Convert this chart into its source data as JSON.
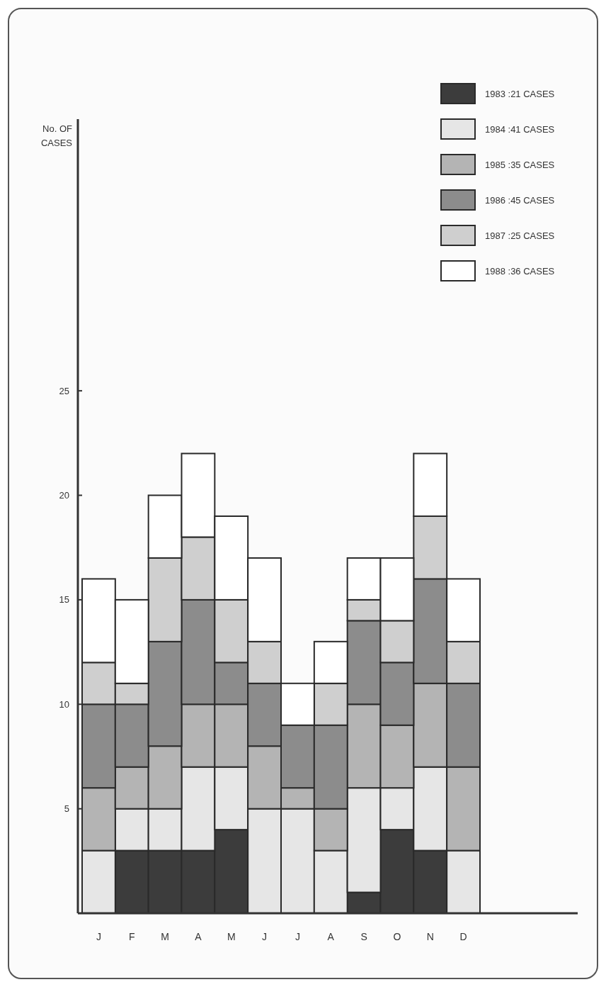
{
  "chart_data": {
    "type": "bar",
    "stacked": true,
    "ylabel": "No. OF CASES",
    "categories": [
      "J",
      "F",
      "M",
      "A",
      "M",
      "J",
      "J",
      "A",
      "S",
      "O",
      "N",
      "D"
    ],
    "series": [
      {
        "name": "1983 :21 CASES",
        "color": "#3c3c3c",
        "values": [
          0,
          3,
          3,
          3,
          4,
          0,
          0,
          0,
          1,
          4,
          3,
          0
        ]
      },
      {
        "name": "1984 :41 CASES",
        "color": "#e6e6e6",
        "values": [
          3,
          2,
          2,
          4,
          3,
          5,
          5,
          3,
          5,
          2,
          4,
          3
        ]
      },
      {
        "name": "1985 :35 CASES",
        "color": "#b4b4b4",
        "values": [
          3,
          2,
          3,
          3,
          3,
          3,
          1,
          2,
          4,
          3,
          4,
          4
        ]
      },
      {
        "name": "1986 :45 CASES",
        "color": "#8c8c8c",
        "values": [
          4,
          3,
          5,
          5,
          2,
          3,
          3,
          4,
          4,
          3,
          5,
          4
        ]
      },
      {
        "name": "1987 :25 CASES",
        "color": "#cfcfcf",
        "values": [
          2,
          1,
          4,
          3,
          3,
          2,
          0,
          2,
          1,
          2,
          3,
          2
        ]
      },
      {
        "name": "1988 :36 CASES",
        "color": "#ffffff",
        "values": [
          4,
          4,
          3,
          4,
          4,
          4,
          2,
          2,
          2,
          3,
          3,
          3
        ]
      }
    ],
    "ylim": [
      0,
      38
    ],
    "yticks": [
      5,
      10,
      15,
      20,
      25
    ],
    "legend": "top right",
    "grid": false
  }
}
